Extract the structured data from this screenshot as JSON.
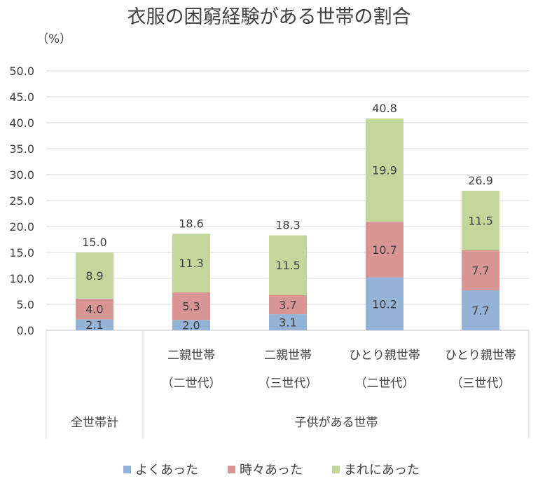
{
  "chart_data": {
    "type": "bar",
    "stacked": true,
    "title": "衣服の困窮経験がある世帯の割合",
    "ylabel": "（%）",
    "ylim": [
      0,
      50
    ],
    "ytick_labels": [
      "0.0",
      "5.0",
      "10.0",
      "15.0",
      "20.0",
      "25.0",
      "30.0",
      "35.0",
      "40.0",
      "45.0",
      "50.0"
    ],
    "grid": true,
    "legend_position": "bottom",
    "categories": [
      {
        "line1": "",
        "line2": ""
      },
      {
        "line1": "二親世帯",
        "line2": "（二世代）"
      },
      {
        "line1": "二親世帯",
        "line2": "（三世代）"
      },
      {
        "line1": "ひとり親世帯",
        "line2": "（二世代）"
      },
      {
        "line1": "ひとり親世帯",
        "line2": "（三世代）"
      }
    ],
    "groups": [
      "全世帯計",
      "子供がある世帯"
    ],
    "series": [
      {
        "name": "よくあった",
        "color": "#95b3d7",
        "values": [
          2.1,
          2.0,
          3.1,
          10.2,
          7.7
        ],
        "labels": [
          "2.1",
          "2.0",
          "3.1",
          "10.2",
          "7.7"
        ]
      },
      {
        "name": "時々あった",
        "color": "#d99594",
        "values": [
          4.0,
          5.3,
          3.7,
          10.7,
          7.7
        ],
        "labels": [
          "4.0",
          "5.3",
          "3.7",
          "10.7",
          "7.7"
        ]
      },
      {
        "name": "まれにあった",
        "color": "#c3d69b",
        "values": [
          8.9,
          11.3,
          11.5,
          19.9,
          11.5
        ],
        "labels": [
          "8.9",
          "11.3",
          "11.5",
          "19.9",
          "11.5"
        ]
      }
    ],
    "totals": [
      15.0,
      18.6,
      18.3,
      40.8,
      26.9
    ],
    "total_labels": [
      "15.0",
      "18.6",
      "18.3",
      "40.8",
      "26.9"
    ]
  }
}
